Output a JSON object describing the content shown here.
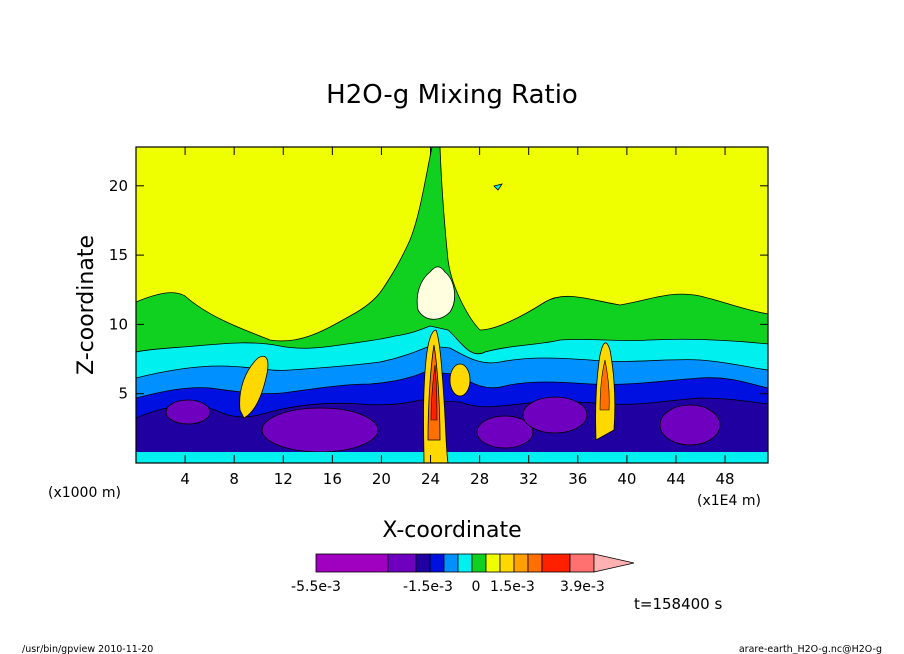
{
  "chart_data": {
    "type": "heatmap",
    "title": "H2O-g Mixing Ratio",
    "xlabel": "X-coordinate",
    "ylabel": "Z-coordinate",
    "x_unit_left": "(x1000 m)",
    "x_unit_right": "(x1E4 m)",
    "x_ticks": [
      "4",
      "8",
      "12",
      "16",
      "20",
      "24",
      "28",
      "32",
      "36",
      "40",
      "44",
      "48"
    ],
    "x_tick_values": [
      4,
      8,
      12,
      16,
      20,
      24,
      28,
      32,
      36,
      40,
      44,
      48
    ],
    "y_ticks": [
      "5",
      "10",
      "15",
      "20"
    ],
    "y_tick_values": [
      5,
      10,
      15,
      20
    ],
    "xlim": [
      0,
      51.5
    ],
    "ylim": [
      0,
      22.8
    ],
    "colorbar": {
      "levels": [
        "-5.5e-3",
        "-1.5e-3",
        "0",
        "1.5e-3",
        "3.9e-3"
      ],
      "colors": [
        "#a000c0",
        "#7000c0",
        "#2000a0",
        "#0010e0",
        "#0090ff",
        "#00f0f0",
        "#10d020",
        "#f0ff00",
        "#ffd800",
        "#ffa000",
        "#ff7000",
        "#ff2000",
        "#ff7070",
        "#ffb0b0"
      ]
    },
    "timestamp": "t=158400 s"
  },
  "footer": {
    "left": "/usr/bin/gpview  2010-11-20",
    "right": "arare-earth_H2O-g.nc@H2O-g"
  }
}
